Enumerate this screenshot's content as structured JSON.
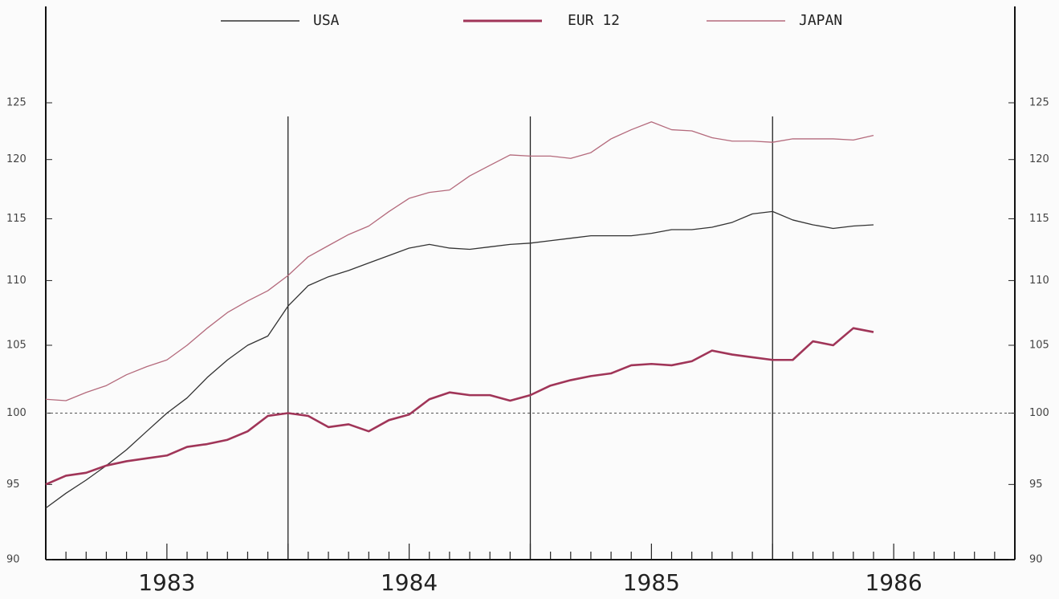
{
  "chart_data": {
    "type": "line",
    "log": true,
    "x": [
      1983,
      1983.0833,
      1983.1667,
      1983.25,
      1983.3333,
      1983.4167,
      1983.5,
      1983.5833,
      1983.6667,
      1983.75,
      1983.8333,
      1983.9167,
      1984,
      1984.0833,
      1984.1667,
      1984.25,
      1984.3333,
      1984.4167,
      1984.5,
      1984.5833,
      1984.6667,
      1984.75,
      1984.8333,
      1984.9167,
      1985,
      1985.0833,
      1985.1667,
      1985.25,
      1985.3333,
      1985.4167,
      1985.5,
      1985.5833,
      1985.6667,
      1985.75,
      1985.8333,
      1985.9167,
      1986,
      1986.0833,
      1986.1667,
      1986.25,
      1986.3333,
      1986.4167
    ],
    "series": [
      {
        "name": "USA",
        "color": "#333333",
        "width": 1.3,
        "values": [
          93.4,
          94.4,
          95.3,
          96.3,
          97.4,
          98.7,
          100.0,
          101.1,
          102.6,
          103.9,
          105.0,
          105.7,
          108.0,
          109.6,
          110.3,
          110.8,
          111.4,
          112.0,
          112.6,
          112.9,
          112.6,
          112.5,
          112.7,
          112.9,
          113.0,
          113.2,
          113.4,
          113.6,
          113.6,
          113.6,
          113.8,
          114.1,
          114.1,
          114.3,
          114.7,
          115.4,
          115.6,
          114.9,
          114.5,
          114.2,
          114.4,
          114.5
        ]
      },
      {
        "name": "EUR 12",
        "color": "#a03558",
        "width": 2.6,
        "values": [
          95.0,
          95.6,
          95.8,
          96.3,
          96.6,
          96.8,
          97.0,
          97.6,
          97.8,
          98.1,
          98.7,
          99.8,
          100.0,
          99.8,
          99.0,
          99.2,
          98.7,
          99.5,
          99.9,
          101.0,
          101.5,
          101.3,
          101.3,
          100.9,
          101.3,
          102.0,
          102.4,
          102.7,
          102.9,
          103.5,
          103.6,
          103.5,
          103.8,
          104.6,
          104.3,
          104.1,
          103.9,
          103.9,
          105.3,
          105.0,
          106.3,
          106.0
        ]
      },
      {
        "name": "JAPAN",
        "color": "#b46a7c",
        "width": 1.3,
        "values": [
          101.0,
          100.9,
          101.5,
          102.0,
          102.8,
          103.4,
          103.9,
          105.0,
          106.3,
          107.5,
          108.4,
          109.2,
          110.4,
          111.9,
          112.8,
          113.7,
          114.4,
          115.6,
          116.7,
          117.2,
          117.4,
          118.6,
          119.5,
          120.4,
          120.3,
          120.3,
          120.1,
          120.6,
          121.8,
          122.6,
          123.3,
          122.6,
          122.5,
          121.9,
          121.6,
          121.6,
          121.5,
          121.8,
          121.8,
          121.8,
          121.7,
          122.1
        ]
      }
    ],
    "xlim": [
      1983,
      1987
    ],
    "xticks": [
      {
        "value": 1983.5,
        "label": "1983"
      },
      {
        "value": 1984.5,
        "label": "1984"
      },
      {
        "value": 1985.5,
        "label": "1985"
      },
      {
        "value": 1986.5,
        "label": "1986"
      }
    ],
    "ylim": [
      90,
      125
    ],
    "yticks": [
      90,
      95,
      100,
      105,
      110,
      115,
      120,
      125
    ],
    "reference_line": 100,
    "legend": "top"
  }
}
